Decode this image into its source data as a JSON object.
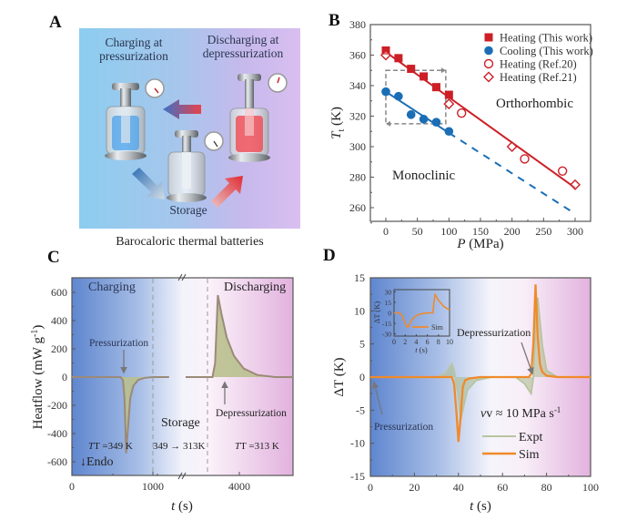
{
  "figure": {
    "panels": [
      "A",
      "B",
      "C",
      "D"
    ]
  },
  "panel_a": {
    "letter": "A",
    "charging_label_1": "Charging at",
    "charging_label_2": "pressurization",
    "discharging_label_1": "Discharging at",
    "discharging_label_2": "depressurization",
    "storage_label": "Storage",
    "caption": "Barocaloric thermal batteries",
    "colors": {
      "cold": "#3aa0e8",
      "hot": "#e8414a",
      "bg_left": "#8ccdef",
      "bg_right": "#d9bff0"
    }
  },
  "chart_data": [
    {
      "panel": "B",
      "letter": "B",
      "type": "scatter",
      "xlabel": "P (MPa)",
      "xlabel_italic": "P",
      "xlabel_unit": " (MPa)",
      "ylabel_italic": "T",
      "ylabel_sub": "t",
      "ylabel_unit": " (K)",
      "xlim": [
        -8,
        340
      ],
      "ylim": [
        250,
        380
      ],
      "xticks": [
        0,
        50,
        100,
        150,
        200,
        250,
        300
      ],
      "yticks": [
        260,
        280,
        300,
        320,
        340,
        360,
        380
      ],
      "legend_position": "top-right",
      "annotations": [
        "Orthorhombic",
        "Monoclinic"
      ],
      "series": [
        {
          "name": "Heating (This work)",
          "marker": "filled-square",
          "color": "#cc1f26",
          "x": [
            0,
            20,
            40,
            60,
            80,
            100
          ],
          "y": [
            363,
            358,
            351,
            346,
            339,
            334
          ]
        },
        {
          "name": "Cooling (This work)",
          "marker": "filled-circle",
          "color": "#1b6eb5",
          "x": [
            0,
            20,
            40,
            60,
            80,
            100
          ],
          "y": [
            336,
            333,
            321,
            318,
            316,
            310
          ]
        },
        {
          "name": "Heating (Ref.20)",
          "marker": "open-circle",
          "color": "#cc1f26",
          "x": [
            120,
            220,
            280
          ],
          "y": [
            322,
            292,
            284
          ]
        },
        {
          "name": "Heating (Ref.21)",
          "marker": "open-diamond",
          "color": "#cc1f26",
          "x": [
            0,
            100,
            200,
            300
          ],
          "y": [
            360,
            328,
            300,
            275
          ]
        }
      ],
      "fits": [
        {
          "name": "heating-fit",
          "color": "#cc1f26",
          "style": "solid",
          "x": [
            0,
            300
          ],
          "y": [
            362,
            273
          ]
        },
        {
          "name": "cooling-fit",
          "color": "#1b6eb5",
          "style": "solid",
          "x": [
            0,
            100
          ],
          "y": [
            336,
            309
          ]
        },
        {
          "name": "cooling-extrapolation",
          "color": "#1b6eb5",
          "style": "dashed",
          "x": [
            100,
            300
          ],
          "y": [
            309,
            256
          ]
        }
      ],
      "dashed_box": {
        "x": [
          0,
          95
        ],
        "y": [
          315,
          350
        ],
        "color": "#888888"
      }
    },
    {
      "panel": "C",
      "letter": "C",
      "type": "line",
      "ylabel": "Heatflow (mW g-1)",
      "ylabel_main": "Heatflow (mW g",
      "ylabel_sup": "-1",
      "ylabel_end": ")",
      "xlabel_italic": "t",
      "xlabel_unit": " (s)",
      "ylim": [
        -700,
        700
      ],
      "yticks": [
        -600,
        -400,
        -200,
        0,
        200,
        400,
        600
      ],
      "xticks": [
        "0",
        "1000",
        "4000"
      ],
      "axis_break": true,
      "regions": [
        {
          "label": "Charging",
          "temperature": "T =349 K"
        },
        {
          "label": "Storage",
          "temperature": "349 → 313K"
        },
        {
          "label": "Discharging",
          "temperature": "T =313 K"
        }
      ],
      "annotations": [
        "Pressurization",
        "Depressurization",
        "↓Endo"
      ],
      "series": [
        {
          "name": "Heatflow",
          "color": "#9b8a78",
          "fill": "#b9c08e",
          "points": [
            [
              0,
              0
            ],
            [
              600,
              0
            ],
            [
              630,
              -20
            ],
            [
              650,
              -150
            ],
            [
              670,
              -540
            ],
            [
              690,
              -380
            ],
            [
              720,
              -150
            ],
            [
              760,
              -60
            ],
            [
              820,
              -20
            ],
            [
              900,
              -5
            ],
            [
              1000,
              0
            ],
            [
              1200,
              0
            ]
          ],
          "points_after_break": [
            [
              3500,
              0
            ],
            [
              3800,
              0
            ],
            [
              3830,
              100
            ],
            [
              3860,
              580
            ],
            [
              3900,
              450
            ],
            [
              3960,
              280
            ],
            [
              4040,
              150
            ],
            [
              4150,
              60
            ],
            [
              4300,
              15
            ],
            [
              4500,
              0
            ],
            [
              4700,
              0
            ]
          ]
        }
      ]
    },
    {
      "panel": "D",
      "letter": "D",
      "type": "line",
      "ylabel_main": "ΔT",
      "ylabel_unit": " (K)",
      "xlabel_italic": "t",
      "xlabel_unit": " (s)",
      "xlim": [
        0,
        100
      ],
      "ylim": [
        -15,
        15
      ],
      "xticks": [
        0,
        20,
        40,
        60,
        80,
        100
      ],
      "yticks": [
        -15,
        -10,
        -5,
        0,
        5,
        10,
        15
      ],
      "annotations": [
        "Depressurization",
        "Pressurization",
        "v ≈ 10 MPa s-1"
      ],
      "rate_label_main": "v ≈ 10 MPa s",
      "rate_label_sup": "-1",
      "legend_position": "bottom-right",
      "series": [
        {
          "name": "Expt",
          "color": "#b8c4a0",
          "x": [
            0,
            30,
            34,
            36,
            37,
            38,
            40,
            41,
            42,
            44,
            48,
            55,
            62,
            66,
            70,
            72,
            73,
            74,
            75,
            76,
            78,
            80,
            85,
            100
          ],
          "y": [
            0,
            0,
            0.5,
            1.5,
            2,
            1,
            -3,
            -6.5,
            -5,
            -2,
            -0.5,
            0,
            0,
            0,
            -1,
            -2,
            -2.5,
            0,
            8,
            12,
            5,
            1,
            0,
            0
          ]
        },
        {
          "name": "Sim",
          "color": "#f08a2a",
          "x": [
            0,
            37,
            38,
            39,
            40,
            41,
            42,
            43,
            45,
            50,
            60,
            72,
            73,
            74,
            75,
            76,
            77,
            78,
            80,
            85,
            100
          ],
          "y": [
            0,
            0,
            -1,
            -5,
            -9.8,
            -6,
            -1.5,
            -0.5,
            -0.2,
            0,
            0,
            0,
            0.5,
            5,
            14,
            6,
            2,
            0.8,
            0.2,
            0,
            0
          ]
        }
      ],
      "inset": {
        "xlabel_italic": "t",
        "xlabel_unit": " (s)",
        "ylabel": "ΔT (K)",
        "xlim": [
          0,
          10
        ],
        "ylim": [
          -35,
          35
        ],
        "xticks": [
          0,
          2,
          4,
          6,
          8,
          10
        ],
        "yticks": [
          -30,
          -15,
          0,
          15,
          30
        ],
        "legend": "Sim",
        "series": {
          "name": "Sim",
          "color": "#f08a2a",
          "x": [
            0,
            1,
            1.4,
            2,
            2.3,
            2.6,
            3.2,
            4,
            5,
            6,
            7,
            7.2,
            7.4,
            8,
            9,
            10
          ],
          "y": [
            0,
            0,
            -3,
            -14,
            -20,
            -20,
            -10,
            -4,
            -1,
            0,
            0,
            15,
            26,
            18,
            9,
            4
          ]
        }
      }
    }
  ]
}
